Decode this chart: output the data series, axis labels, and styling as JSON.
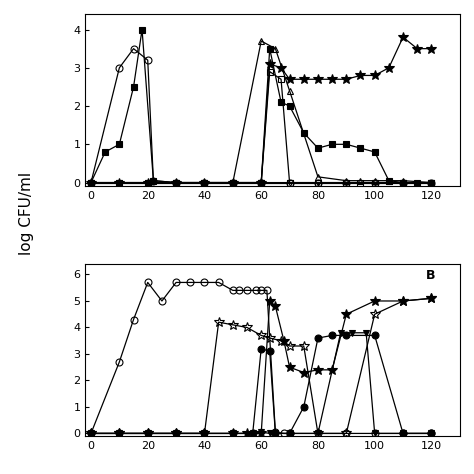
{
  "subplot_A": {
    "ylim": [
      -0.1,
      4.4
    ],
    "yticks": [
      0,
      1,
      2,
      3,
      4
    ],
    "xlim": [
      -2,
      130
    ],
    "xticks": [
      0,
      20,
      40,
      60,
      80,
      100,
      120
    ],
    "series": [
      {
        "name": "open_circle",
        "x": [
          0,
          10,
          15,
          20,
          22,
          30,
          40,
          50,
          60,
          70,
          80,
          90,
          100,
          110,
          120
        ],
        "y": [
          0.0,
          3.0,
          3.5,
          3.2,
          0.05,
          0.0,
          0.0,
          0.0,
          0.0,
          0.0,
          0.0,
          0.0,
          0.0,
          0.0,
          0.0
        ],
        "marker": "o",
        "fillstyle": "none"
      },
      {
        "name": "filled_square",
        "x": [
          0,
          5,
          10,
          15,
          18,
          22,
          30,
          40,
          50,
          60,
          63,
          67,
          70,
          75,
          80,
          85,
          90,
          95,
          100,
          105,
          110,
          115,
          120
        ],
        "y": [
          0.0,
          0.8,
          1.0,
          2.5,
          4.0,
          0.05,
          0.0,
          0.0,
          0.0,
          0.0,
          3.5,
          2.1,
          2.0,
          1.3,
          0.9,
          1.0,
          1.0,
          0.9,
          0.8,
          0.05,
          0.0,
          0.0,
          0.0
        ],
        "marker": "s",
        "fillstyle": "full"
      },
      {
        "name": "open_inverted_triangle",
        "x": [
          0,
          10,
          20,
          30,
          40,
          50,
          60,
          70,
          80,
          90,
          100,
          110,
          120
        ],
        "y": [
          0.0,
          0.0,
          0.0,
          0.0,
          0.0,
          0.0,
          0.0,
          0.0,
          0.0,
          0.0,
          0.0,
          0.0,
          0.0
        ],
        "marker": "v",
        "fillstyle": "none"
      },
      {
        "name": "open_triangle_up",
        "x": [
          0,
          10,
          20,
          30,
          40,
          50,
          60,
          65,
          70,
          80,
          90,
          95,
          100,
          105,
          110,
          120
        ],
        "y": [
          0.0,
          0.0,
          0.0,
          0.0,
          0.0,
          0.0,
          3.7,
          3.5,
          2.4,
          0.15,
          0.05,
          0.05,
          0.05,
          0.05,
          0.05,
          0.0
        ],
        "marker": "^",
        "fillstyle": "none"
      },
      {
        "name": "open_square",
        "x": [
          0,
          10,
          20,
          30,
          40,
          50,
          60,
          63,
          67,
          70,
          80,
          90,
          95,
          100,
          110,
          120
        ],
        "y": [
          0.0,
          0.0,
          0.0,
          0.0,
          0.0,
          0.0,
          0.0,
          2.9,
          2.7,
          0.0,
          0.0,
          0.0,
          0.0,
          0.0,
          0.0,
          0.0
        ],
        "marker": "s",
        "fillstyle": "none"
      },
      {
        "name": "filled_star",
        "x": [
          0,
          10,
          20,
          30,
          40,
          50,
          60,
          63,
          67,
          70,
          75,
          80,
          85,
          90,
          95,
          100,
          105,
          110,
          115,
          120
        ],
        "y": [
          0.0,
          0.0,
          0.0,
          0.0,
          0.0,
          0.0,
          0.0,
          3.1,
          3.0,
          2.7,
          2.7,
          2.7,
          2.7,
          2.7,
          2.8,
          2.8,
          3.0,
          3.8,
          3.5,
          3.5
        ],
        "marker": "*",
        "fillstyle": "full"
      }
    ]
  },
  "subplot_B": {
    "label": "B",
    "ylim": [
      -0.1,
      6.4
    ],
    "yticks": [
      0,
      1,
      2,
      3,
      4,
      5,
      6
    ],
    "xlim": [
      -2,
      130
    ],
    "xticks": [
      0,
      20,
      40,
      60,
      80,
      100,
      120
    ],
    "series": [
      {
        "name": "open_circle",
        "x": [
          0,
          10,
          15,
          20,
          25,
          30,
          35,
          40,
          45,
          50,
          52,
          55,
          58,
          60,
          62,
          65,
          68,
          70,
          80,
          90,
          100,
          110,
          120
        ],
        "y": [
          0.0,
          2.7,
          4.3,
          5.7,
          5.0,
          5.7,
          5.7,
          5.7,
          5.7,
          5.4,
          5.4,
          5.4,
          5.4,
          5.4,
          5.4,
          0.05,
          0.0,
          0.0,
          0.0,
          0.0,
          0.0,
          0.0,
          0.0
        ],
        "marker": "o",
        "fillstyle": "none"
      },
      {
        "name": "open_star",
        "x": [
          0,
          10,
          20,
          30,
          40,
          45,
          50,
          55,
          60,
          63,
          67,
          70,
          75,
          80,
          90,
          100,
          110,
          120
        ],
        "y": [
          0.0,
          0.0,
          0.0,
          0.0,
          0.0,
          4.2,
          4.1,
          4.0,
          3.7,
          3.6,
          3.5,
          3.3,
          3.3,
          0.0,
          0.0,
          4.5,
          5.0,
          5.1
        ],
        "marker": "*",
        "fillstyle": "none"
      },
      {
        "name": "filled_star",
        "x": [
          0,
          10,
          20,
          30,
          40,
          50,
          55,
          60,
          63,
          65,
          68,
          70,
          75,
          80,
          85,
          90,
          100,
          110,
          120
        ],
        "y": [
          0.0,
          0.0,
          0.0,
          0.0,
          0.0,
          0.0,
          0.0,
          0.0,
          5.0,
          4.8,
          3.5,
          2.5,
          2.3,
          2.4,
          2.4,
          4.5,
          5.0,
          5.0,
          5.1
        ],
        "marker": "*",
        "fillstyle": "full"
      },
      {
        "name": "filled_circle",
        "x": [
          0,
          10,
          20,
          30,
          40,
          50,
          57,
          60,
          63,
          65,
          70,
          75,
          80,
          85,
          90,
          100,
          110,
          120
        ],
        "y": [
          0.0,
          0.0,
          0.0,
          0.0,
          0.0,
          0.0,
          0.0,
          3.2,
          3.1,
          0.0,
          0.0,
          1.0,
          3.6,
          3.7,
          3.7,
          3.7,
          0.0,
          0.0
        ],
        "marker": "o",
        "fillstyle": "full"
      },
      {
        "name": "filled_triangle_down",
        "x": [
          0,
          10,
          20,
          30,
          40,
          50,
          57,
          60,
          63,
          65,
          70,
          80,
          88,
          92,
          97,
          100,
          110,
          120
        ],
        "y": [
          0.0,
          0.0,
          0.0,
          0.0,
          0.0,
          0.0,
          0.0,
          0.05,
          0.0,
          0.0,
          0.0,
          0.0,
          3.8,
          3.8,
          3.8,
          0.0,
          0.0,
          0.0
        ],
        "marker": "v",
        "fillstyle": "full"
      }
    ]
  },
  "ylabel": "log CFU/ml",
  "background_color": "white",
  "figure_size": [
    4.74,
    4.74
  ],
  "dpi": 100
}
